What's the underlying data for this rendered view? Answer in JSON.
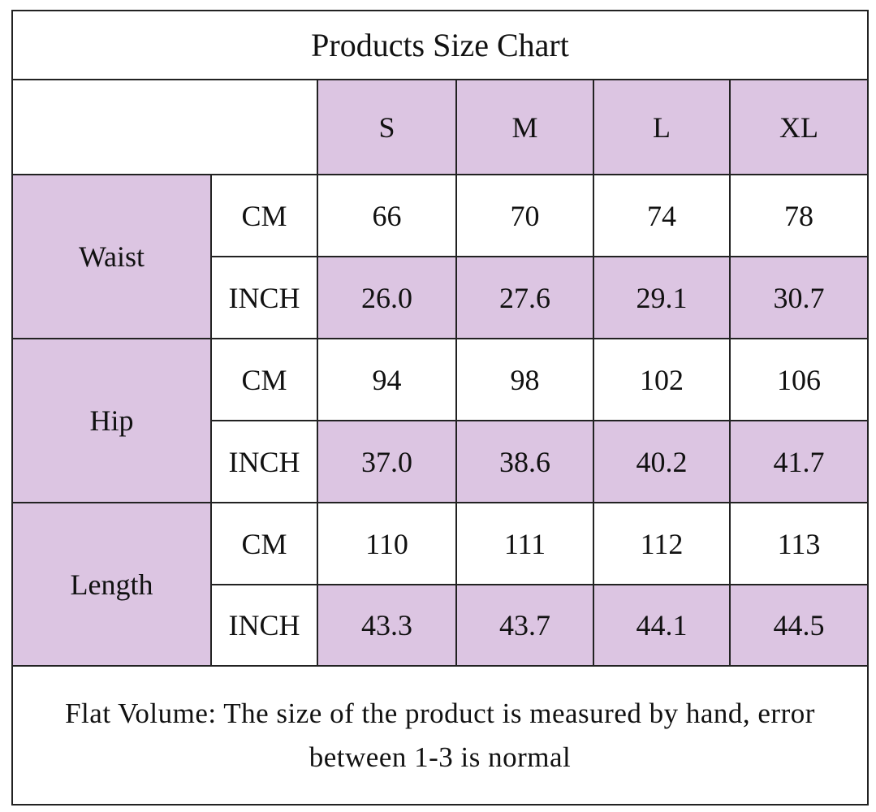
{
  "title": "Products Size Chart",
  "sizes": [
    "S",
    "M",
    "L",
    "XL"
  ],
  "groups": [
    {
      "name": "Waist",
      "rows": [
        {
          "unit": "CM",
          "values": [
            "66",
            "70",
            "74",
            "78"
          ]
        },
        {
          "unit": "INCH",
          "values": [
            "26.0",
            "27.6",
            "29.1",
            "30.7"
          ]
        }
      ]
    },
    {
      "name": "Hip",
      "rows": [
        {
          "unit": "CM",
          "values": [
            "94",
            "98",
            "102",
            "106"
          ]
        },
        {
          "unit": "INCH",
          "values": [
            "37.0",
            "38.6",
            "40.2",
            "41.7"
          ]
        }
      ]
    },
    {
      "name": "Length",
      "rows": [
        {
          "unit": "CM",
          "values": [
            "110",
            "111",
            "112",
            "113"
          ]
        },
        {
          "unit": "INCH",
          "values": [
            "43.3",
            "43.7",
            "44.1",
            "44.5"
          ]
        }
      ]
    }
  ],
  "note": "Flat Volume: The size of the product is measured by hand, error between 1-3 is normal"
}
